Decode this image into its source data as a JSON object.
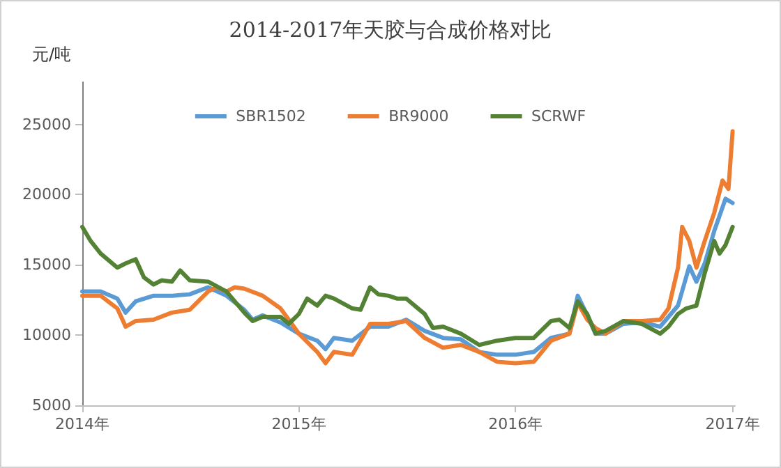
{
  "chart_data": {
    "type": "line",
    "title": "2014-2017年天胶与合成价格对比",
    "ylabel": "元/吨",
    "xlim": [
      "2014-01-01",
      "2017-01-05"
    ],
    "xticks": [
      {
        "value": "2014-01-01",
        "label": "2014年"
      },
      {
        "value": "2015-01-01",
        "label": "2015年"
      },
      {
        "value": "2016-01-01",
        "label": "2016年"
      },
      {
        "value": "2017-01-01",
        "label": "2017年"
      }
    ],
    "ylim": [
      5000,
      28000
    ],
    "yticks": [
      5000,
      10000,
      15000,
      20000,
      25000
    ],
    "grid": false,
    "legend": "top",
    "marker": "none",
    "line_style": "solid",
    "series": [
      {
        "name": "SBR1502",
        "color": "#5b9bd5",
        "x": [
          "2014-01-01",
          "2014-02-01",
          "2014-03-01",
          "2014-03-15",
          "2014-04-01",
          "2014-05-01",
          "2014-06-01",
          "2014-07-01",
          "2014-08-01",
          "2014-09-01",
          "2014-10-01",
          "2014-10-15",
          "2014-11-01",
          "2014-12-01",
          "2015-01-01",
          "2015-02-01",
          "2015-02-15",
          "2015-03-01",
          "2015-04-01",
          "2015-05-01",
          "2015-06-01",
          "2015-07-01",
          "2015-08-01",
          "2015-09-01",
          "2015-10-01",
          "2015-11-01",
          "2015-12-01",
          "2016-01-01",
          "2016-02-01",
          "2016-03-01",
          "2016-04-01",
          "2016-04-15",
          "2016-05-01",
          "2016-05-15",
          "2016-06-01",
          "2016-07-01",
          "2016-08-01",
          "2016-09-01",
          "2016-10-01",
          "2016-10-20",
          "2016-11-01",
          "2016-11-15",
          "2016-12-01",
          "2016-12-20",
          "2017-01-01"
        ],
        "values": [
          13100,
          13100,
          12600,
          11600,
          12400,
          12800,
          12800,
          12900,
          13400,
          12800,
          11800,
          11100,
          11400,
          10900,
          10100,
          9600,
          9000,
          9800,
          9600,
          10600,
          10600,
          11100,
          10300,
          9800,
          9700,
          8800,
          8600,
          8600,
          8800,
          9800,
          10100,
          12800,
          11400,
          10100,
          10100,
          10800,
          10900,
          10600,
          12100,
          14900,
          13800,
          15100,
          17400,
          19700,
          19400
        ]
      },
      {
        "name": "BR9000",
        "color": "#ed7d31",
        "x": [
          "2014-01-01",
          "2014-02-01",
          "2014-03-01",
          "2014-03-15",
          "2014-04-01",
          "2014-05-01",
          "2014-06-01",
          "2014-07-01",
          "2014-08-01",
          "2014-08-15",
          "2014-09-01",
          "2014-09-15",
          "2014-10-01",
          "2014-11-01",
          "2014-12-01",
          "2015-01-01",
          "2015-02-01",
          "2015-02-15",
          "2015-03-01",
          "2015-04-01",
          "2015-05-01",
          "2015-06-01",
          "2015-07-01",
          "2015-08-01",
          "2015-09-01",
          "2015-10-01",
          "2015-11-01",
          "2015-12-01",
          "2016-01-01",
          "2016-02-01",
          "2016-03-01",
          "2016-04-01",
          "2016-04-15",
          "2016-05-01",
          "2016-05-15",
          "2016-06-01",
          "2016-07-01",
          "2016-08-01",
          "2016-09-01",
          "2016-09-15",
          "2016-10-01",
          "2016-10-08",
          "2016-10-20",
          "2016-11-01",
          "2016-11-15",
          "2016-12-01",
          "2016-12-15",
          "2016-12-25",
          "2017-01-01"
        ],
        "values": [
          12800,
          12800,
          11900,
          10600,
          11000,
          11100,
          11600,
          11800,
          13100,
          13400,
          13100,
          13400,
          13300,
          12800,
          11900,
          10100,
          8800,
          8000,
          8800,
          8600,
          10800,
          10800,
          11000,
          9800,
          9100,
          9300,
          8800,
          8100,
          8000,
          8100,
          9600,
          10100,
          12300,
          11100,
          10500,
          10100,
          11000,
          11000,
          11100,
          11900,
          14800,
          17700,
          16700,
          14800,
          16700,
          18700,
          21000,
          20400,
          24500
        ]
      },
      {
        "name": "SCRWF",
        "color": "#548235",
        "x": [
          "2014-01-01",
          "2014-01-15",
          "2014-02-01",
          "2014-03-01",
          "2014-03-15",
          "2014-04-01",
          "2014-04-15",
          "2014-05-01",
          "2014-05-15",
          "2014-06-01",
          "2014-06-15",
          "2014-07-01",
          "2014-08-01",
          "2014-09-01",
          "2014-10-01",
          "2014-10-15",
          "2014-11-01",
          "2014-12-01",
          "2014-12-15",
          "2015-01-01",
          "2015-01-15",
          "2015-02-01",
          "2015-02-15",
          "2015-03-01",
          "2015-04-01",
          "2015-04-15",
          "2015-05-01",
          "2015-05-15",
          "2015-06-01",
          "2015-06-15",
          "2015-07-01",
          "2015-08-01",
          "2015-08-15",
          "2015-09-01",
          "2015-10-01",
          "2015-11-01",
          "2015-12-01",
          "2016-01-01",
          "2016-02-01",
          "2016-03-01",
          "2016-03-15",
          "2016-04-01",
          "2016-04-15",
          "2016-05-01",
          "2016-05-15",
          "2016-06-01",
          "2016-07-01",
          "2016-08-01",
          "2016-09-01",
          "2016-09-15",
          "2016-10-01",
          "2016-10-15",
          "2016-11-01",
          "2016-11-15",
          "2016-12-01",
          "2016-12-10",
          "2016-12-20",
          "2017-01-01"
        ],
        "values": [
          17700,
          16700,
          15800,
          14800,
          15100,
          15400,
          14100,
          13600,
          13900,
          13800,
          14600,
          13900,
          13800,
          13100,
          11600,
          11000,
          11300,
          11300,
          10800,
          11500,
          12600,
          12100,
          12800,
          12600,
          11900,
          11800,
          13400,
          12900,
          12800,
          12600,
          12600,
          11500,
          10500,
          10600,
          10100,
          9300,
          9600,
          9800,
          9800,
          11000,
          11100,
          10500,
          12400,
          11500,
          10100,
          10300,
          11000,
          10800,
          10100,
          10600,
          11500,
          11900,
          12100,
          14400,
          16700,
          15800,
          16400,
          17700
        ]
      }
    ]
  }
}
